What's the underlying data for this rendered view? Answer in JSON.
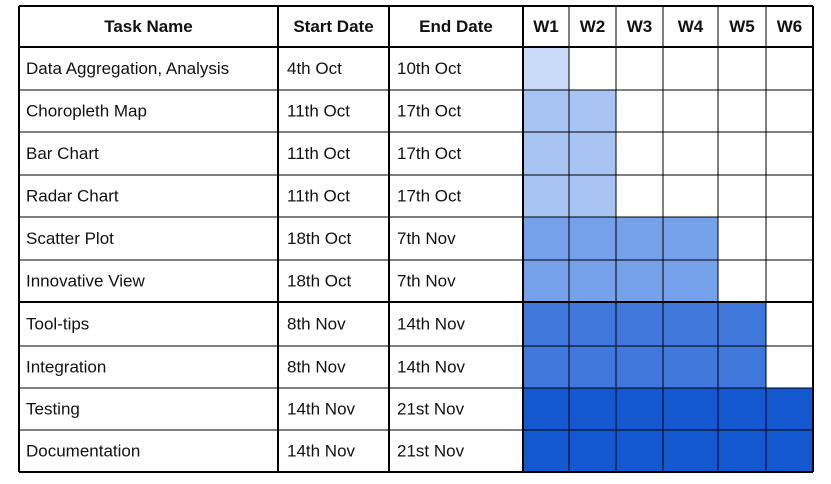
{
  "chart_data": {
    "type": "table",
    "columns": [
      "Task Name",
      "Start Date",
      "End Date"
    ],
    "weeks": [
      "W1",
      "W2",
      "W3",
      "W4",
      "W5",
      "W6"
    ],
    "rows": [
      {
        "task": "Data Aggregation, Analysis",
        "start": "4th Oct",
        "end": "10th Oct",
        "week_start": 1,
        "week_end": 1,
        "color": "#c9d9f8"
      },
      {
        "task": "Choropleth Map",
        "start": "11th Oct",
        "end": "17th Oct",
        "week_start": 1,
        "week_end": 2,
        "color": "#a8c4f3"
      },
      {
        "task": "Bar Chart",
        "start": "11th Oct",
        "end": "17th Oct",
        "week_start": 1,
        "week_end": 2,
        "color": "#a8c4f3"
      },
      {
        "task": "Radar Chart",
        "start": "11th Oct",
        "end": "17th Oct",
        "week_start": 1,
        "week_end": 2,
        "color": "#a8c4f3"
      },
      {
        "task": "Scatter Plot",
        "start": "18th Oct",
        "end": "7th Nov",
        "week_start": 1,
        "week_end": 4,
        "color": "#75a1ea"
      },
      {
        "task": "Innovative View",
        "start": "18th Oct",
        "end": "7th Nov",
        "week_start": 1,
        "week_end": 4,
        "color": "#75a1ea"
      },
      {
        "task": "Tool-tips",
        "start": "8th Nov",
        "end": "14th Nov",
        "week_start": 1,
        "week_end": 5,
        "color": "#3f78da"
      },
      {
        "task": "Integration",
        "start": "8th Nov",
        "end": "14th Nov",
        "week_start": 1,
        "week_end": 5,
        "color": "#3f78da"
      },
      {
        "task": "Testing",
        "start": "14th Nov",
        "end": "21st Nov",
        "week_start": 1,
        "week_end": 6,
        "color": "#1458d0"
      },
      {
        "task": "Documentation",
        "start": "14th Nov",
        "end": "21st Nov",
        "week_start": 1,
        "week_end": 6,
        "color": "#1458d0"
      }
    ],
    "colors": {
      "grid": "#000000",
      "background": "#ffffff"
    }
  }
}
